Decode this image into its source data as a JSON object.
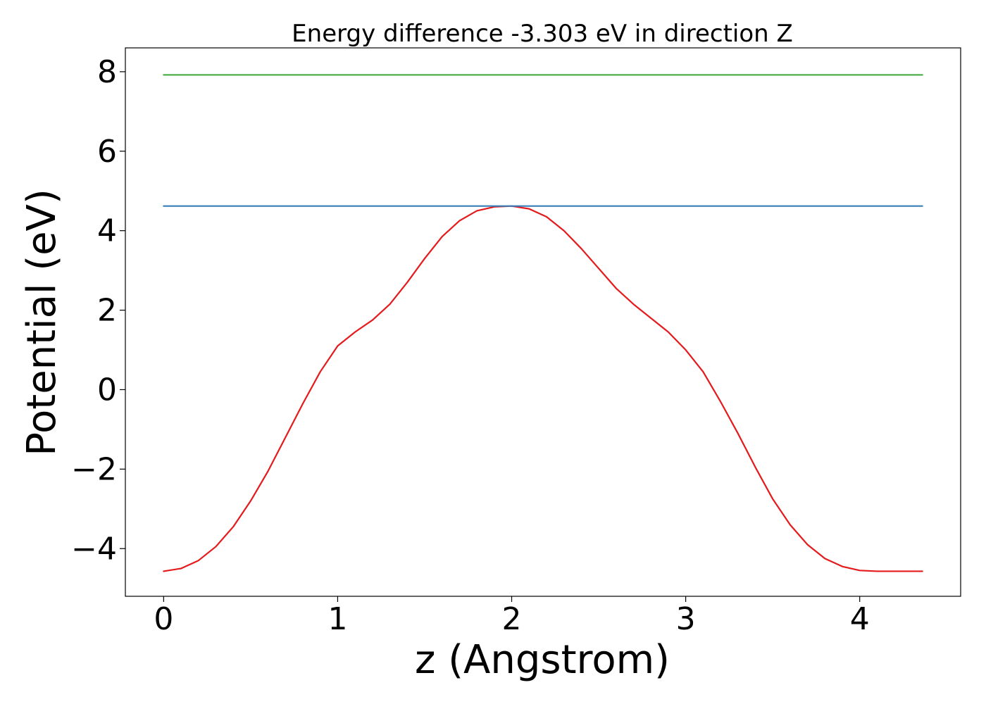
{
  "chart_data": {
    "type": "line",
    "title": "Energy difference -3.303 eV in direction Z",
    "xlabel": "z (Angstrom)",
    "ylabel": "Potential (eV)",
    "xlim": [
      -0.22,
      4.58
    ],
    "ylim": [
      -5.2,
      8.6
    ],
    "xticks": [
      0,
      1,
      2,
      3,
      4
    ],
    "yticks": [
      -4,
      -2,
      0,
      2,
      4,
      6,
      8
    ],
    "xtick_labels": [
      "0",
      "1",
      "2",
      "3",
      "4"
    ],
    "ytick_labels": [
      "−4",
      "−2",
      "0",
      "2",
      "4",
      "6",
      "8"
    ],
    "grid": false,
    "legend": "none",
    "series": [
      {
        "color": "#e41a1c",
        "x": [
          0.0,
          0.1,
          0.2,
          0.3,
          0.4,
          0.5,
          0.6,
          0.7,
          0.8,
          0.9,
          1.0,
          1.1,
          1.2,
          1.3,
          1.4,
          1.5,
          1.6,
          1.7,
          1.8,
          1.9,
          2.0,
          2.1,
          2.2,
          2.3,
          2.4,
          2.5,
          2.6,
          2.7,
          2.8,
          2.9,
          3.0,
          3.1,
          3.2,
          3.3,
          3.4,
          3.5,
          3.6,
          3.7,
          3.8,
          3.9,
          4.0,
          4.1,
          4.2,
          4.3,
          4.36
        ],
        "y": [
          -4.57,
          -4.5,
          -4.3,
          -3.95,
          -3.45,
          -2.8,
          -2.05,
          -1.2,
          -0.35,
          0.45,
          1.1,
          1.45,
          1.75,
          2.15,
          2.7,
          3.3,
          3.85,
          4.25,
          4.5,
          4.6,
          4.62,
          4.55,
          4.35,
          4.0,
          3.55,
          3.05,
          2.55,
          2.15,
          1.8,
          1.45,
          1.0,
          0.45,
          -0.3,
          -1.1,
          -1.95,
          -2.75,
          -3.4,
          -3.9,
          -4.25,
          -4.45,
          -4.55,
          -4.57,
          -4.57,
          -4.57,
          -4.57
        ]
      },
      {
        "color": "#377eb8",
        "x": [
          0.0,
          4.36
        ],
        "y": [
          4.62,
          4.62
        ]
      },
      {
        "color": "#4daf4a",
        "x": [
          0.0,
          4.36
        ],
        "y": [
          7.92,
          7.92
        ]
      }
    ]
  }
}
